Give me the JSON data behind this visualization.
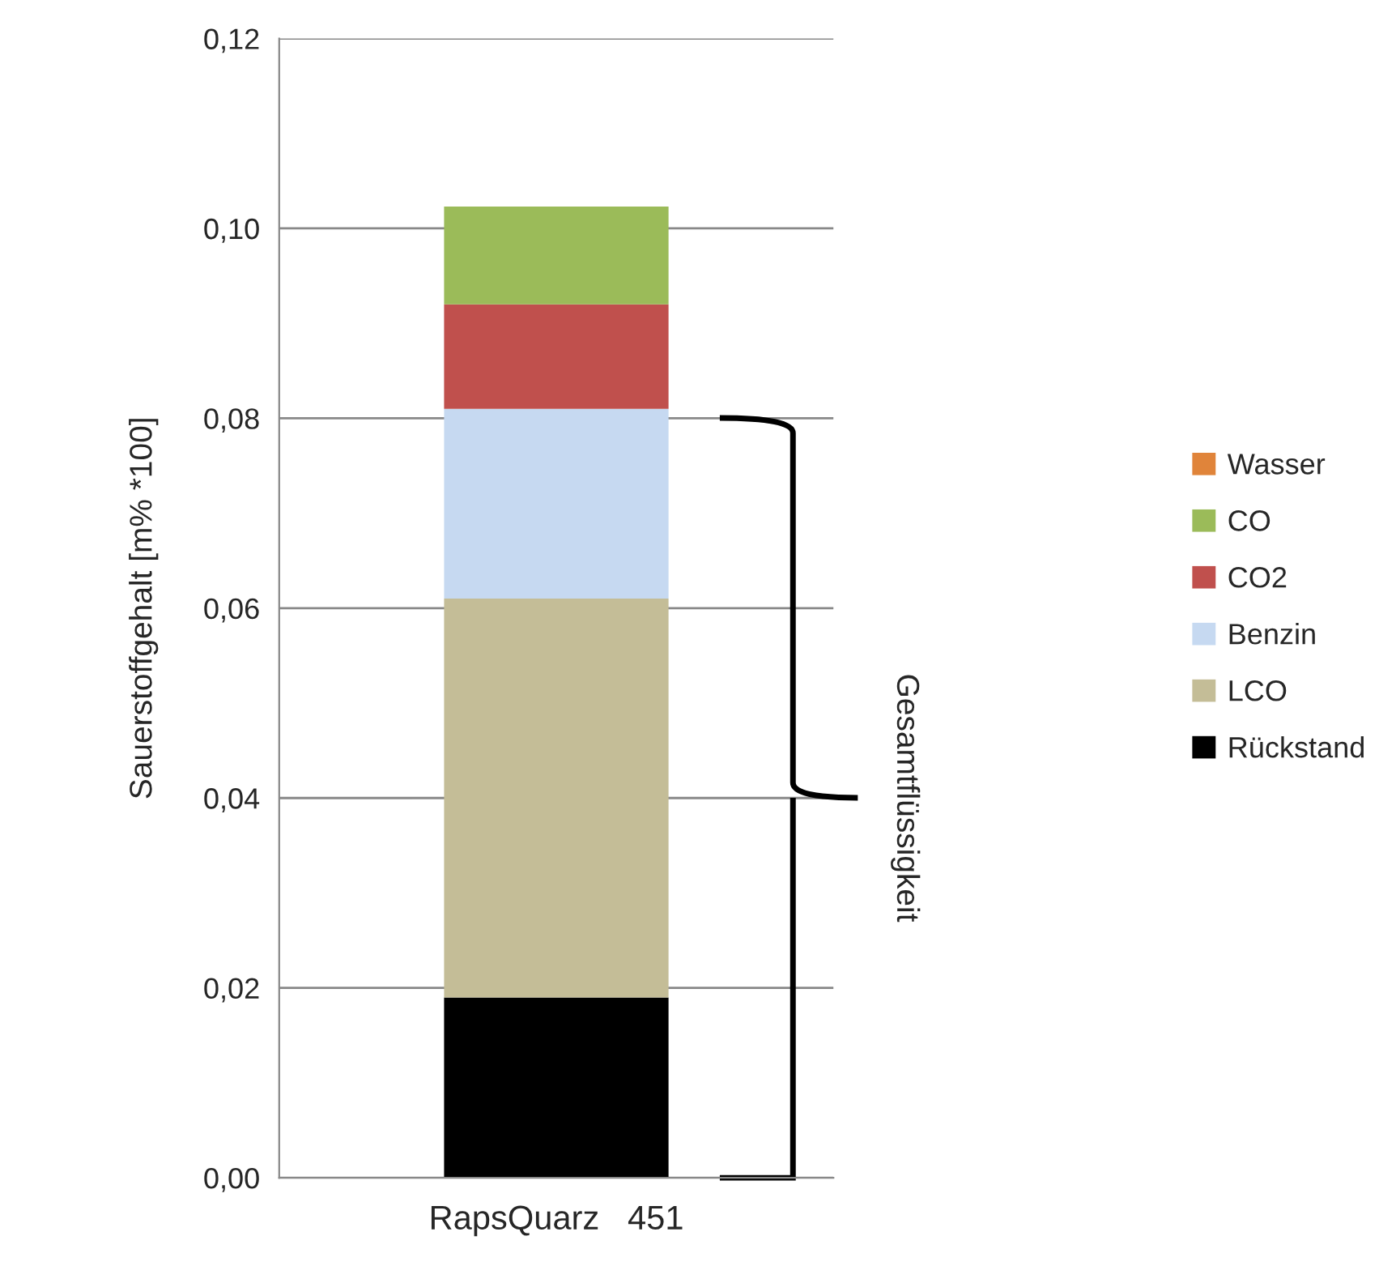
{
  "chart_data": {
    "type": "bar",
    "stacked": true,
    "ylabel": "Sauerstoffgehalt [m% *100]",
    "categories": [
      "RapsQuarz   451"
    ],
    "series": [
      {
        "name": "Rückstand",
        "color": "#000000",
        "values": [
          0.019
        ]
      },
      {
        "name": "LCO",
        "color": "#c4bd97",
        "values": [
          0.042
        ]
      },
      {
        "name": "Benzin",
        "color": "#c6d9f1",
        "values": [
          0.02
        ]
      },
      {
        "name": "CO2",
        "color": "#c0504d",
        "values": [
          0.011
        ]
      },
      {
        "name": "CO",
        "color": "#9bbb59",
        "values": [
          0.0103
        ]
      },
      {
        "name": "Wasser",
        "color": "#e0843a",
        "values": [
          0
        ]
      }
    ],
    "ylim": [
      0,
      0.12
    ],
    "yticks": [
      {
        "value": 0,
        "label": "0,00"
      },
      {
        "value": 0.02,
        "label": "0,02"
      },
      {
        "value": 0.04,
        "label": "0,04"
      },
      {
        "value": 0.06,
        "label": "0,06"
      },
      {
        "value": 0.08,
        "label": "0,08"
      },
      {
        "value": 0.1,
        "label": "0,10"
      },
      {
        "value": 0.12,
        "label": "0,12"
      }
    ],
    "grid": "y",
    "legend": "right",
    "annotations": [
      "Gesamtflüssigkeit"
    ]
  }
}
